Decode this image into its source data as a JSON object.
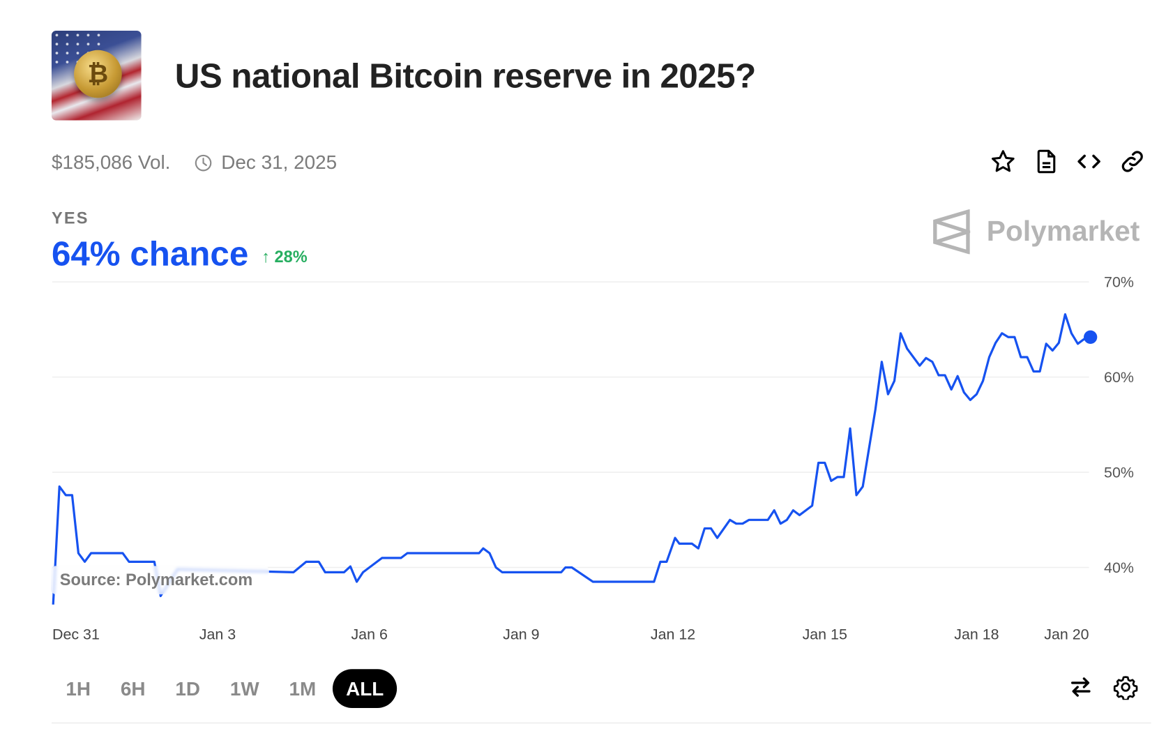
{
  "header": {
    "title": "US national Bitcoin reserve in 2025?",
    "thumbnail_icon": "bitcoin-flag-image",
    "volume": "$185,086 Vol.",
    "end_date": "Dec 31, 2025",
    "actions": [
      "star-icon",
      "document-icon",
      "code-icon",
      "link-icon"
    ]
  },
  "outcome": {
    "label": "YES",
    "chance": "64% chance",
    "change": "28%",
    "change_direction": "up",
    "accent_color": "#1652f0",
    "change_color": "#27ae60"
  },
  "watermark": {
    "brand": "Polymarket"
  },
  "source_label": "Source: Polymarket.com",
  "controls": {
    "ranges": [
      "1H",
      "6H",
      "1D",
      "1W",
      "1M",
      "ALL"
    ],
    "active_range": "ALL",
    "icons": [
      "swap-icon",
      "settings-icon"
    ]
  },
  "chart_data": {
    "type": "line",
    "title": "",
    "xlabel": "",
    "ylabel": "",
    "y_ticks": [
      "40%",
      "50%",
      "60%",
      "70%"
    ],
    "y_tick_values": [
      40,
      50,
      60,
      70
    ],
    "ylim": [
      36,
      70
    ],
    "x_ticks": [
      "Dec 31",
      "Jan 3",
      "Jan 6",
      "Jan 9",
      "Jan 12",
      "Jan 15",
      "Jan 18",
      "Jan 20"
    ],
    "grid": "horizontal",
    "y_axis_side": "right",
    "line_color": "#1652f0",
    "series": [
      {
        "points": [
          [
            "Dec 30 18:00",
            36.1
          ],
          [
            "Dec 30 21:00",
            48.5
          ],
          [
            "Dec 31 00:00",
            47.6
          ],
          [
            "Dec 31 03:00",
            47.6
          ],
          [
            "Dec 31 06:00",
            41.5
          ],
          [
            "Dec 31 09:00",
            40.6
          ],
          [
            "Dec 31 12:00",
            41.5
          ],
          [
            "Jan 1 03:00",
            41.5
          ],
          [
            "Jan 1 06:00",
            40.6
          ],
          [
            "Jan 1 18:00",
            40.6
          ],
          [
            "Jan 1 21:00",
            37.0
          ],
          [
            "Jan 2 05:00",
            39.8
          ],
          [
            "Jan 3 17:00",
            39.6
          ],
          [
            "Jan 4 12:00",
            39.5
          ],
          [
            "Jan 4 18:00",
            40.6
          ],
          [
            "Jan 5 00:00",
            40.6
          ],
          [
            "Jan 5 03:00",
            39.5
          ],
          [
            "Jan 5 12:00",
            39.5
          ],
          [
            "Jan 5 15:00",
            40.1
          ],
          [
            "Jan 5 18:00",
            38.5
          ],
          [
            "Jan 5 21:00",
            39.5
          ],
          [
            "Jan 6 06:00",
            41.0
          ],
          [
            "Jan 6 15:00",
            41.0
          ],
          [
            "Jan 6 18:00",
            41.5
          ],
          [
            "Jan 8 04:00",
            41.5
          ],
          [
            "Jan 8 06:00",
            42.0
          ],
          [
            "Jan 8 09:00",
            41.5
          ],
          [
            "Jan 8 12:00",
            40.0
          ],
          [
            "Jan 8 15:00",
            39.5
          ],
          [
            "Jan 9 19:00",
            39.5
          ],
          [
            "Jan 9 21:00",
            40.0
          ],
          [
            "Jan 10 00:00",
            40.0
          ],
          [
            "Jan 10 10:00",
            38.5
          ],
          [
            "Jan 11 15:00",
            38.5
          ],
          [
            "Jan 11 18:00",
            40.6
          ],
          [
            "Jan 11 21:00",
            40.6
          ],
          [
            "Jan 12 01:00",
            43.1
          ],
          [
            "Jan 12 03:00",
            42.5
          ],
          [
            "Jan 12 09:00",
            42.5
          ],
          [
            "Jan 12 12:00",
            42.0
          ],
          [
            "Jan 12 15:00",
            44.1
          ],
          [
            "Jan 12 18:00",
            44.1
          ],
          [
            "Jan 12 21:00",
            43.1
          ],
          [
            "Jan 13 03:00",
            45.0
          ],
          [
            "Jan 13 06:00",
            44.6
          ],
          [
            "Jan 13 09:00",
            44.6
          ],
          [
            "Jan 13 12:00",
            45.0
          ],
          [
            "Jan 13 21:00",
            45.0
          ],
          [
            "Jan 14 00:00",
            46.0
          ],
          [
            "Jan 14 03:00",
            44.6
          ],
          [
            "Jan 14 06:00",
            45.0
          ],
          [
            "Jan 14 09:00",
            46.0
          ],
          [
            "Jan 14 12:00",
            45.5
          ],
          [
            "Jan 14 18:00",
            46.5
          ],
          [
            "Jan 14 21:00",
            51.0
          ],
          [
            "Jan 15 00:00",
            51.0
          ],
          [
            "Jan 15 03:00",
            49.1
          ],
          [
            "Jan 15 06:00",
            49.5
          ],
          [
            "Jan 15 09:00",
            49.5
          ],
          [
            "Jan 15 12:00",
            54.6
          ],
          [
            "Jan 15 15:00",
            47.6
          ],
          [
            "Jan 15 18:00",
            48.5
          ],
          [
            "Jan 16 00:00",
            56.6
          ],
          [
            "Jan 16 03:00",
            61.6
          ],
          [
            "Jan 16 06:00",
            58.2
          ],
          [
            "Jan 16 09:00",
            59.6
          ],
          [
            "Jan 16 12:00",
            64.6
          ],
          [
            "Jan 16 15:00",
            63.0
          ],
          [
            "Jan 16 21:00",
            61.2
          ],
          [
            "Jan 17 00:00",
            62.0
          ],
          [
            "Jan 17 03:00",
            61.6
          ],
          [
            "Jan 17 06:00",
            60.2
          ],
          [
            "Jan 17 09:00",
            60.2
          ],
          [
            "Jan 17 12:00",
            58.7
          ],
          [
            "Jan 17 15:00",
            60.1
          ],
          [
            "Jan 17 18:00",
            58.4
          ],
          [
            "Jan 17 21:00",
            57.6
          ],
          [
            "Jan 18 00:00",
            58.2
          ],
          [
            "Jan 18 03:00",
            59.6
          ],
          [
            "Jan 18 06:00",
            62.1
          ],
          [
            "Jan 18 09:00",
            63.6
          ],
          [
            "Jan 18 12:00",
            64.6
          ],
          [
            "Jan 18 15:00",
            64.2
          ],
          [
            "Jan 18 18:00",
            64.2
          ],
          [
            "Jan 18 21:00",
            62.1
          ],
          [
            "Jan 19 00:00",
            62.1
          ],
          [
            "Jan 19 03:00",
            60.6
          ],
          [
            "Jan 19 06:00",
            60.6
          ],
          [
            "Jan 19 09:00",
            63.5
          ],
          [
            "Jan 19 12:00",
            62.8
          ],
          [
            "Jan 19 15:00",
            63.6
          ],
          [
            "Jan 19 18:00",
            66.6
          ],
          [
            "Jan 19 21:00",
            64.6
          ],
          [
            "Jan 20 00:00",
            63.5
          ],
          [
            "Jan 20 03:00",
            64.0
          ],
          [
            "Jan 20 06:00",
            64.2
          ]
        ]
      }
    ]
  }
}
